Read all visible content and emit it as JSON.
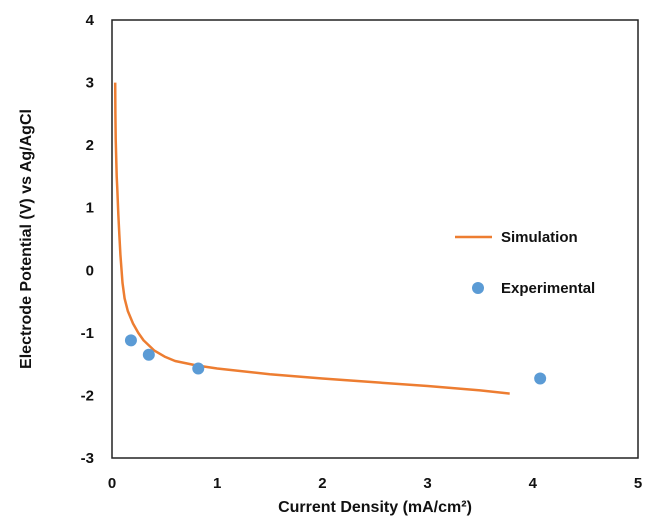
{
  "chart_data": {
    "type": "line",
    "xlabel": "Current Density (mA/cm²)",
    "ylabel": "Electrode  Potential (V)  vs Ag/AgCl",
    "xlim": [
      0,
      5
    ],
    "ylim": [
      -3,
      4
    ],
    "xticks": [
      "0",
      "1",
      "2",
      "3",
      "4",
      "5"
    ],
    "yticks": [
      "4",
      "3",
      "2",
      "1",
      "0",
      "-1",
      "-2",
      "-3"
    ],
    "grid": false,
    "legend_position": "right",
    "series": [
      {
        "name": "Simulation",
        "type": "line",
        "color": "#ED7D31",
        "x": [
          0.03,
          0.032,
          0.035,
          0.04,
          0.045,
          0.05,
          0.055,
          0.06,
          0.07,
          0.08,
          0.1,
          0.12,
          0.15,
          0.2,
          0.25,
          0.3,
          0.4,
          0.5,
          0.6,
          0.8,
          1.0,
          1.5,
          2.0,
          2.5,
          3.0,
          3.5,
          3.78
        ],
        "y": [
          3.0,
          2.5,
          2.1,
          1.8,
          1.5,
          1.3,
          1.1,
          0.9,
          0.55,
          0.25,
          -0.2,
          -0.45,
          -0.65,
          -0.85,
          -1.0,
          -1.12,
          -1.28,
          -1.38,
          -1.45,
          -1.52,
          -1.57,
          -1.66,
          -1.73,
          -1.79,
          -1.85,
          -1.92,
          -1.97
        ]
      },
      {
        "name": "Experimental",
        "type": "scatter",
        "color": "#5B9BD5",
        "x": [
          0.18,
          0.35,
          0.82,
          4.07
        ],
        "y": [
          -1.12,
          -1.35,
          -1.57,
          -1.73
        ]
      }
    ]
  }
}
